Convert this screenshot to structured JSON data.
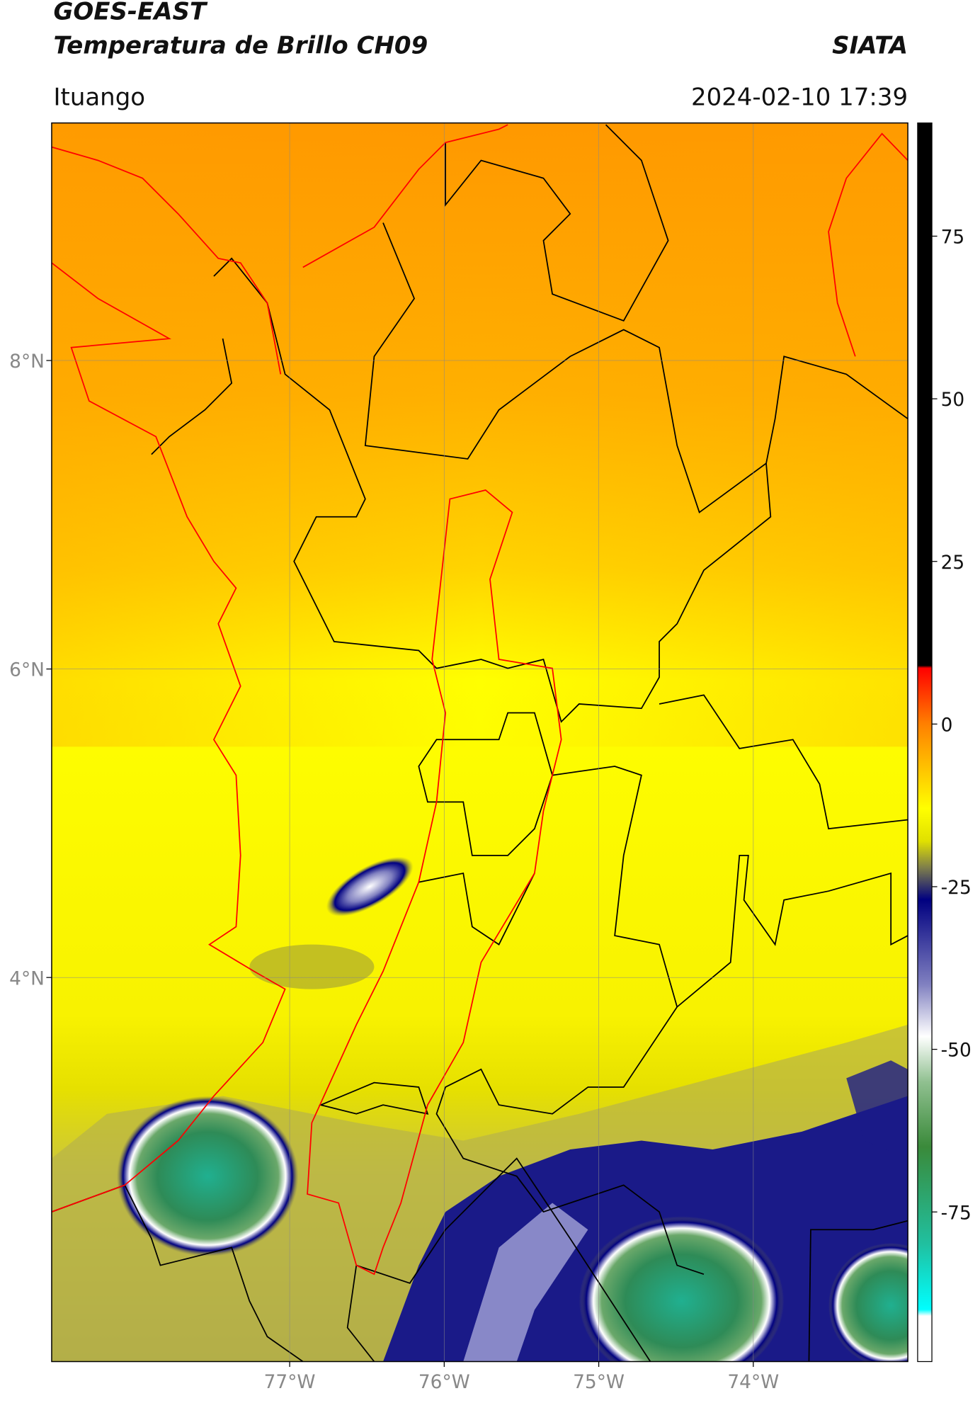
{
  "header": {
    "title": "GOES-EAST",
    "subtitle": "Temperatura de Brillo CH09",
    "source": "SIATA",
    "region": "Ituango",
    "datetime": "2024-02-10 17:39"
  },
  "map": {
    "xlim": [
      -78.54,
      -73.0
    ],
    "ylim": [
      1.51,
      9.54
    ],
    "xticks": [
      {
        "value": -77,
        "label": "77°W"
      },
      {
        "value": -76,
        "label": "76°W"
      },
      {
        "value": -75,
        "label": "75°W"
      },
      {
        "value": -74,
        "label": "74°W"
      }
    ],
    "yticks": [
      {
        "value": 4,
        "label": "4°N"
      },
      {
        "value": 6,
        "label": "6°N"
      },
      {
        "value": 8,
        "label": "8°N"
      }
    ],
    "grid": true
  },
  "colorbar": {
    "lim": [
      -98,
      92.4
    ],
    "ticks": [
      75,
      50,
      25,
      0,
      -25,
      -50,
      -75
    ],
    "stops": [
      {
        "value": 92.4,
        "color": "#000000"
      },
      {
        "value": 9,
        "color": "#000000"
      },
      {
        "value": 8.6,
        "color": "#ff0000"
      },
      {
        "value": 0,
        "color": "#ff8000"
      },
      {
        "value": -13,
        "color": "#ffff00"
      },
      {
        "value": -18,
        "color": "#e0e000"
      },
      {
        "value": -22,
        "color": "#80804a"
      },
      {
        "value": -27,
        "color": "#000080"
      },
      {
        "value": -40,
        "color": "#8080c0"
      },
      {
        "value": -48,
        "color": "#ffffff"
      },
      {
        "value": -55,
        "color": "#90c090"
      },
      {
        "value": -65,
        "color": "#3a8a3a"
      },
      {
        "value": -80,
        "color": "#20c0a0"
      },
      {
        "value": -90,
        "color": "#00ffff"
      },
      {
        "value": -91,
        "color": "#ffffff"
      },
      {
        "value": -98,
        "color": "#ffffff"
      }
    ]
  }
}
